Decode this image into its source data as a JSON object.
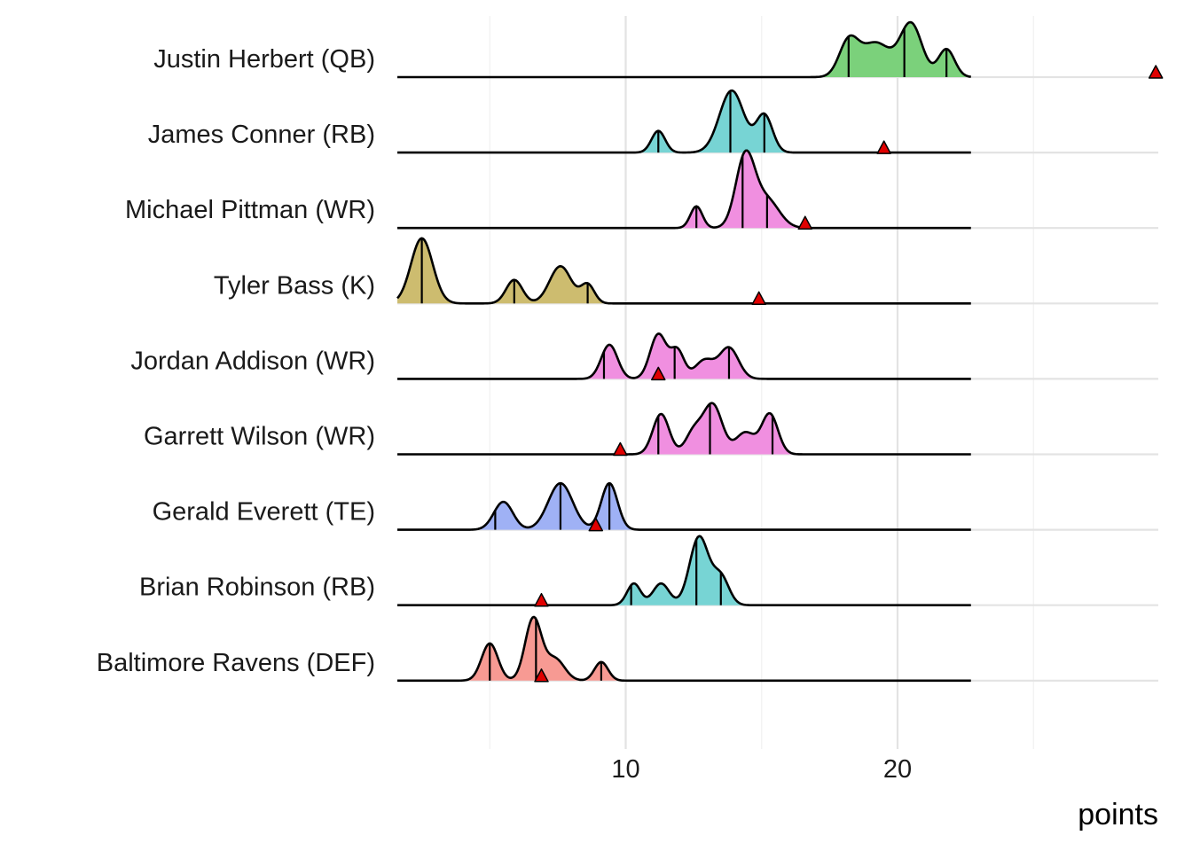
{
  "chart_data": {
    "type": "ridgeline",
    "title": "",
    "xlabel": "points",
    "ylabel": "",
    "x_ticks": [
      10,
      20
    ],
    "x_range": [
      1.6,
      29.6
    ],
    "density_range": [
      1.6,
      22.7
    ],
    "grid": true,
    "legend": "none",
    "marker_color": "#e00000",
    "series": [
      {
        "name": "Justin Herbert (QB)",
        "color": "#7bd17b",
        "components": [
          [
            18.2,
            0.35,
            0.55
          ],
          [
            19.2,
            0.55,
            0.55
          ],
          [
            20.5,
            0.4,
            0.85
          ],
          [
            21.8,
            0.3,
            0.45
          ]
        ],
        "quantiles": [
          18.2,
          20.25,
          21.8
        ],
        "marker": 29.5
      },
      {
        "name": "James Conner (RB)",
        "color": "#77d4d4",
        "components": [
          [
            11.2,
            0.25,
            0.35
          ],
          [
            13.9,
            0.45,
            1.0
          ],
          [
            15.1,
            0.3,
            0.6
          ]
        ],
        "quantiles": [
          11.2,
          13.85,
          15.1
        ],
        "marker": 19.5
      },
      {
        "name": "Michael Pittman (WR)",
        "color": "#f08fe0",
        "components": [
          [
            12.6,
            0.22,
            0.35
          ],
          [
            14.4,
            0.35,
            1.15
          ],
          [
            15.2,
            0.45,
            0.45
          ]
        ],
        "quantiles": [
          12.6,
          14.3,
          15.2
        ],
        "marker": 16.6
      },
      {
        "name": "Tyler Bass (K)",
        "color": "#cdbc6f",
        "components": [
          [
            2.5,
            0.4,
            1.05
          ],
          [
            5.9,
            0.3,
            0.38
          ],
          [
            7.6,
            0.4,
            0.6
          ],
          [
            8.6,
            0.25,
            0.3
          ]
        ],
        "quantiles": [
          2.5,
          5.9,
          8.6
        ],
        "marker": 14.9
      },
      {
        "name": "Jordan Addison (WR)",
        "color": "#f08fe0",
        "components": [
          [
            9.4,
            0.3,
            0.55
          ],
          [
            11.2,
            0.3,
            0.72
          ],
          [
            11.9,
            0.25,
            0.45
          ],
          [
            12.9,
            0.35,
            0.3
          ],
          [
            13.8,
            0.35,
            0.5
          ]
        ],
        "quantiles": [
          9.2,
          11.8,
          13.8
        ],
        "marker": 11.2
      },
      {
        "name": "Garrett Wilson (WR)",
        "color": "#f08fe0",
        "components": [
          [
            11.3,
            0.3,
            0.65
          ],
          [
            13.2,
            0.35,
            0.8
          ],
          [
            12.5,
            0.3,
            0.35
          ],
          [
            14.4,
            0.35,
            0.35
          ],
          [
            15.3,
            0.3,
            0.65
          ]
        ],
        "quantiles": [
          11.2,
          13.1,
          15.4
        ],
        "marker": 9.8
      },
      {
        "name": "Gerald Everett (TE)",
        "color": "#9fb1f5",
        "components": [
          [
            5.5,
            0.35,
            0.45
          ],
          [
            7.6,
            0.45,
            0.75
          ],
          [
            9.4,
            0.3,
            0.75
          ]
        ],
        "quantiles": [
          5.2,
          7.6,
          9.4
        ],
        "marker": 8.9
      },
      {
        "name": "Brian Robinson (RB)",
        "color": "#77d4d4",
        "components": [
          [
            10.3,
            0.25,
            0.35
          ],
          [
            11.3,
            0.3,
            0.35
          ],
          [
            12.7,
            0.35,
            1.1
          ],
          [
            13.5,
            0.3,
            0.45
          ]
        ],
        "quantiles": [
          10.2,
          12.6,
          13.5
        ],
        "marker": 6.9
      },
      {
        "name": "Baltimore Ravens (DEF)",
        "color": "#f79a93",
        "components": [
          [
            5.0,
            0.3,
            0.6
          ],
          [
            6.6,
            0.3,
            1.0
          ],
          [
            7.4,
            0.35,
            0.35
          ],
          [
            9.1,
            0.25,
            0.3
          ]
        ],
        "quantiles": [
          5.0,
          6.7,
          9.1
        ],
        "marker": 6.9
      }
    ]
  }
}
